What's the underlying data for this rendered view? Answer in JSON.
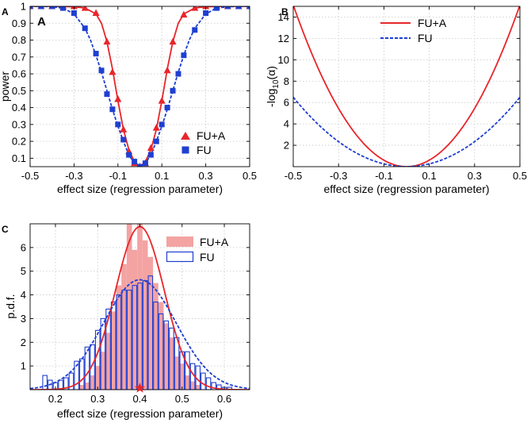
{
  "chart_data": [
    {
      "panel": "A",
      "panel_label": "A",
      "inner_label": "A",
      "type": "line",
      "xlabel": "effect size (regression parameter)",
      "ylabel": "power",
      "xlim": [
        -0.5,
        0.5
      ],
      "ylim": [
        0.05,
        1
      ],
      "xticks": [
        -0.5,
        -0.3,
        -0.1,
        0.1,
        0.3,
        0.5
      ],
      "xtick_labels": [
        "-0.5",
        "-0.3",
        "-0.1",
        "0.1",
        "0.3",
        "0.5"
      ],
      "yticks": [
        0.1,
        0.2,
        0.3,
        0.4,
        0.5,
        0.6,
        0.7,
        0.8,
        0.9,
        1
      ],
      "ytick_labels": [
        "0.1",
        "0.2",
        "0.3",
        "0.4",
        "0.5",
        "0.6",
        "0.7",
        "0.8",
        "0.9",
        "1"
      ],
      "grid": true,
      "legend_position": "bottom-right",
      "series": [
        {
          "name": "FU+A",
          "color": "#e8262b",
          "line_style": "solid",
          "marker": "triangle",
          "curve": {
            "x": [
              -0.5,
              -0.4,
              -0.3,
              -0.25,
              -0.2,
              -0.175,
              -0.15,
              -0.125,
              -0.1,
              -0.075,
              -0.05,
              -0.025,
              0,
              0.025,
              0.05,
              0.075,
              0.1,
              0.125,
              0.15,
              0.175,
              0.2,
              0.25,
              0.3,
              0.4,
              0.5
            ],
            "y": [
              1,
              1,
              0.998,
              0.99,
              0.955,
              0.9,
              0.79,
              0.63,
              0.44,
              0.27,
              0.15,
              0.08,
              0.05,
              0.08,
              0.15,
              0.27,
              0.44,
              0.63,
              0.79,
              0.9,
              0.955,
              0.99,
              0.998,
              1,
              1
            ]
          },
          "markers": {
            "x": [
              -0.5,
              -0.45,
              -0.4,
              -0.35,
              -0.3,
              -0.25,
              -0.2,
              -0.15,
              -0.125,
              -0.1,
              -0.075,
              -0.05,
              -0.025,
              0,
              0.025,
              0.05,
              0.075,
              0.1,
              0.125,
              0.15,
              0.2,
              0.25,
              0.3,
              0.35,
              0.4,
              0.45,
              0.5
            ],
            "y": [
              1,
              1,
              1,
              1,
              1,
              0.99,
              0.96,
              0.79,
              0.61,
              0.45,
              0.27,
              0.14,
              0.07,
              0.05,
              0.07,
              0.16,
              0.28,
              0.44,
              0.62,
              0.79,
              0.95,
              0.99,
              1,
              1,
              1,
              1,
              1
            ]
          }
        },
        {
          "name": "FU",
          "color": "#1f3fd1",
          "line_style": "dashed",
          "marker": "square",
          "curve": {
            "x": [
              -0.5,
              -0.45,
              -0.4,
              -0.35,
              -0.3,
              -0.25,
              -0.225,
              -0.2,
              -0.175,
              -0.15,
              -0.125,
              -0.1,
              -0.075,
              -0.05,
              -0.025,
              0,
              0.025,
              0.05,
              0.075,
              0.1,
              0.125,
              0.15,
              0.175,
              0.2,
              0.225,
              0.25,
              0.3,
              0.35,
              0.4,
              0.45,
              0.5
            ],
            "y": [
              1,
              1,
              0.998,
              0.99,
              0.955,
              0.87,
              0.8,
              0.71,
              0.61,
              0.5,
              0.39,
              0.29,
              0.2,
              0.12,
              0.07,
              0.05,
              0.07,
              0.12,
              0.2,
              0.29,
              0.39,
              0.5,
              0.61,
              0.71,
              0.8,
              0.87,
              0.955,
              0.99,
              0.998,
              1,
              1
            ]
          },
          "markers": {
            "x": [
              -0.5,
              -0.45,
              -0.4,
              -0.35,
              -0.3,
              -0.25,
              -0.2,
              -0.175,
              -0.15,
              -0.125,
              -0.1,
              -0.075,
              -0.05,
              -0.025,
              0,
              0.025,
              0.05,
              0.075,
              0.1,
              0.125,
              0.15,
              0.175,
              0.2,
              0.25,
              0.3,
              0.35,
              0.4,
              0.45,
              0.5
            ],
            "y": [
              1,
              1,
              1,
              0.99,
              0.96,
              0.87,
              0.72,
              0.62,
              0.48,
              0.39,
              0.3,
              0.21,
              0.12,
              0.08,
              0.05,
              0.07,
              0.12,
              0.2,
              0.3,
              0.4,
              0.5,
              0.6,
              0.71,
              0.86,
              0.96,
              0.99,
              1,
              1,
              1
            ]
          }
        }
      ]
    },
    {
      "panel": "B",
      "panel_label": "B",
      "type": "line",
      "xlabel": "effect size (regression parameter)",
      "ylabel": "-log10(α)",
      "ylabel_parts": {
        "prefix": "-log",
        "sub": "10",
        "suffix": "(α)"
      },
      "xlim": [
        -0.5,
        0.5
      ],
      "ylim": [
        0,
        15
      ],
      "xticks": [
        -0.5,
        -0.3,
        -0.1,
        0.1,
        0.3,
        0.5
      ],
      "xtick_labels": [
        "-0.5",
        "-0.3",
        "-0.1",
        "0.1",
        "0.3",
        "0.5"
      ],
      "yticks": [
        2,
        4,
        6,
        8,
        10,
        12,
        14
      ],
      "ytick_labels": [
        "2",
        "4",
        "6",
        "8",
        "10",
        "12",
        "14"
      ],
      "grid": true,
      "legend_position": "top-center",
      "series": [
        {
          "name": "FU+A",
          "color": "#e8262b",
          "line_style": "solid",
          "coef": 60.5
        },
        {
          "name": "FU",
          "color": "#1f3fd1",
          "line_style": "dashed",
          "coef": 26
        }
      ]
    },
    {
      "panel": "C",
      "panel_label": "C",
      "type": "bar",
      "xlabel": "effect size (regression parameter)",
      "ylabel": "p.d.f.",
      "xlim": [
        0.14,
        0.66
      ],
      "ylim": [
        0,
        7
      ],
      "xticks": [
        0.2,
        0.3,
        0.4,
        0.5,
        0.6
      ],
      "xtick_labels": [
        "0.2",
        "0.3",
        "0.4",
        "0.5",
        "0.6"
      ],
      "yticks": [
        1,
        2,
        3,
        4,
        5,
        6
      ],
      "ytick_labels": [
        "1",
        "2",
        "3",
        "4",
        "5",
        "6"
      ],
      "grid": true,
      "legend_position": "top-right",
      "true_value": 0.4,
      "series": [
        {
          "name": "FU+A",
          "kind": "hist-filled",
          "color": "#f4a3a3",
          "fit_color": "#e8262b",
          "bin_width": 0.0125,
          "bins": [
            0.2625,
            0.275,
            0.2875,
            0.3,
            0.3125,
            0.325,
            0.3375,
            0.35,
            0.3625,
            0.375,
            0.3875,
            0.4,
            0.4125,
            0.425,
            0.4375,
            0.45,
            0.4625,
            0.475,
            0.4875,
            0.5,
            0.5125,
            0.525,
            0.5375
          ],
          "values": [
            0.2,
            0.3,
            0.6,
            1.0,
            1.6,
            2.4,
            3.3,
            4.4,
            5.3,
            7.2,
            5.9,
            7.0,
            6.3,
            5.6,
            4.5,
            3.7,
            2.8,
            2.2,
            1.4,
            1.1,
            0.6,
            0.35,
            0.2
          ],
          "fit": {
            "mean": 0.4,
            "sd": 0.058
          }
        },
        {
          "name": "FU",
          "kind": "hist-outline",
          "color": "#1f3fd1",
          "fit_color": "#1f3fd1",
          "bin_width": 0.0125,
          "bins": [
            0.15,
            0.1625,
            0.175,
            0.1875,
            0.2,
            0.2125,
            0.225,
            0.2375,
            0.25,
            0.2625,
            0.275,
            0.2875,
            0.3,
            0.3125,
            0.325,
            0.3375,
            0.35,
            0.3625,
            0.375,
            0.3875,
            0.4,
            0.4125,
            0.425,
            0.4375,
            0.45,
            0.4625,
            0.475,
            0.4875,
            0.5,
            0.5125,
            0.525,
            0.5375,
            0.55,
            0.5625,
            0.575,
            0.5875,
            0.6,
            0.6125,
            0.625,
            0.6375,
            0.65
          ],
          "values": [
            0.0,
            0.0,
            0.6,
            0.4,
            0.3,
            0.4,
            0.5,
            0.7,
            1.2,
            1.3,
            1.8,
            1.9,
            2.5,
            3.0,
            3.4,
            3.7,
            4.0,
            4.2,
            4.2,
            4.4,
            4.5,
            4.6,
            4.8,
            3.7,
            3.2,
            2.9,
            2.6,
            2.2,
            1.6,
            1.6,
            1.1,
            1.0,
            0.7,
            0.5,
            0.3,
            0.2,
            0.1,
            0.1,
            0.0,
            0.0,
            0.0
          ],
          "fit": {
            "mean": 0.4,
            "sd": 0.086
          }
        }
      ]
    }
  ]
}
